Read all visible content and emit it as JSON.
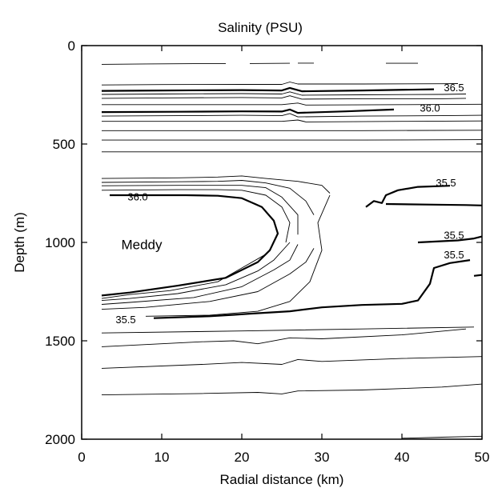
{
  "chart_data": {
    "type": "line",
    "title": "Salinity (PSU)",
    "xlabel": "Radial distance (km)",
    "ylabel": "Depth (m)",
    "xlim": [
      0,
      50
    ],
    "ylim": [
      2000,
      0
    ],
    "x_ticks": [
      0,
      10,
      20,
      30,
      40,
      50
    ],
    "y_ticks": [
      0,
      500,
      1000,
      1500,
      2000
    ],
    "grid": false,
    "annotations": [
      {
        "text": "Meddy",
        "x": 7.5,
        "y": 1010
      }
    ],
    "contour_labels": [
      {
        "text": "36.5",
        "x": 46.5,
        "y": 215
      },
      {
        "text": "36.0",
        "x": 43.5,
        "y": 320
      },
      {
        "text": "36.0",
        "x": 7,
        "y": 770
      },
      {
        "text": "35.5",
        "x": 45.5,
        "y": 700
      },
      {
        "text": "35.5",
        "x": 46.5,
        "y": 965
      },
      {
        "text": "35.5",
        "x": 46.5,
        "y": 1065
      },
      {
        "text": "35.5",
        "x": 5.5,
        "y": 1395
      }
    ],
    "series": [
      {
        "style": "thin",
        "points": [
          [
            2.5,
            95
          ],
          [
            8,
            93
          ],
          [
            14,
            92
          ],
          [
            18,
            92
          ]
        ]
      },
      {
        "style": "thin",
        "points": [
          [
            21,
            91
          ],
          [
            26,
            90
          ]
        ]
      },
      {
        "style": "thin",
        "points": [
          [
            27,
            89
          ],
          [
            29,
            89
          ]
        ]
      },
      {
        "style": "thin",
        "points": [
          [
            38,
            90
          ],
          [
            42,
            90
          ]
        ]
      },
      {
        "style": "thin",
        "points": [
          [
            2.5,
            200
          ],
          [
            10,
            198
          ],
          [
            20,
            197
          ],
          [
            25,
            197
          ],
          [
            26,
            185
          ],
          [
            27,
            195
          ],
          [
            35,
            195
          ],
          [
            45,
            194
          ],
          [
            47,
            193
          ]
        ]
      },
      {
        "style": "thick",
        "points": [
          [
            2.5,
            230
          ],
          [
            10,
            228
          ],
          [
            20,
            226
          ],
          [
            25,
            228
          ],
          [
            26,
            215
          ],
          [
            27.5,
            232
          ],
          [
            35,
            228
          ],
          [
            44,
            222
          ]
        ]
      },
      {
        "style": "thin",
        "points": [
          [
            2.5,
            248
          ],
          [
            10,
            246
          ],
          [
            20,
            244
          ],
          [
            25,
            246
          ],
          [
            26,
            235
          ],
          [
            27.5,
            252
          ],
          [
            35,
            250
          ],
          [
            45,
            248
          ],
          [
            48,
            246
          ]
        ]
      },
      {
        "style": "thin",
        "points": [
          [
            2.5,
            268
          ],
          [
            10,
            266
          ],
          [
            20,
            264
          ],
          [
            25,
            266
          ],
          [
            26,
            255
          ],
          [
            27.5,
            272
          ],
          [
            35,
            270
          ],
          [
            45,
            270
          ],
          [
            48,
            268
          ]
        ]
      },
      {
        "style": "thin",
        "points": [
          [
            2.5,
            300
          ],
          [
            15,
            300
          ],
          [
            25,
            300
          ],
          [
            27,
            292
          ],
          [
            28,
            302
          ],
          [
            40,
            300
          ],
          [
            50,
            298
          ]
        ]
      },
      {
        "style": "thick",
        "points": [
          [
            2.5,
            338
          ],
          [
            12,
            336
          ],
          [
            20,
            334
          ],
          [
            25,
            335
          ],
          [
            26,
            325
          ],
          [
            27,
            342
          ],
          [
            33,
            334
          ],
          [
            39,
            325
          ]
        ]
      },
      {
        "style": "thin",
        "points": [
          [
            2.5,
            358
          ],
          [
            12,
            356
          ],
          [
            20,
            354
          ],
          [
            25,
            356
          ],
          [
            26,
            345
          ],
          [
            27,
            362
          ],
          [
            35,
            358
          ],
          [
            45,
            356
          ],
          [
            50,
            354
          ]
        ]
      },
      {
        "style": "thin",
        "points": [
          [
            2.5,
            385
          ],
          [
            15,
            385
          ],
          [
            25,
            385
          ],
          [
            27,
            378
          ],
          [
            28,
            388
          ],
          [
            40,
            385
          ],
          [
            50,
            383
          ]
        ]
      },
      {
        "style": "thin",
        "points": [
          [
            2.5,
            432
          ],
          [
            20,
            432
          ],
          [
            35,
            432
          ],
          [
            50,
            430
          ]
        ]
      },
      {
        "style": "thin",
        "points": [
          [
            2.5,
            480
          ],
          [
            20,
            480
          ],
          [
            35,
            480
          ],
          [
            50,
            478
          ]
        ]
      },
      {
        "style": "thin",
        "points": [
          [
            2.5,
            540
          ],
          [
            20,
            540
          ],
          [
            35,
            540
          ],
          [
            50,
            540
          ]
        ]
      },
      {
        "style": "thin",
        "points": [
          [
            2.5,
            675
          ],
          [
            12,
            672
          ],
          [
            17,
            668
          ],
          [
            20,
            662
          ],
          [
            23,
            675
          ],
          [
            27,
            690
          ],
          [
            30,
            710
          ],
          [
            31,
            750
          ]
        ]
      },
      {
        "style": "thin",
        "points": [
          [
            2.5,
            695
          ],
          [
            12,
            692
          ],
          [
            17,
            690
          ],
          [
            20,
            685
          ],
          [
            23,
            698
          ],
          [
            26,
            725
          ],
          [
            28,
            790
          ],
          [
            29,
            860
          ]
        ]
      },
      {
        "style": "thin",
        "points": [
          [
            2.5,
            712
          ],
          [
            12,
            710
          ],
          [
            17,
            710
          ],
          [
            20,
            710
          ],
          [
            23,
            722
          ],
          [
            25,
            770
          ],
          [
            27,
            860
          ],
          [
            27,
            960
          ]
        ]
      },
      {
        "style": "thin",
        "points": [
          [
            2.5,
            735
          ],
          [
            12,
            732
          ],
          [
            17,
            732
          ],
          [
            20,
            735
          ],
          [
            23,
            760
          ],
          [
            25,
            820
          ],
          [
            26,
            900
          ],
          [
            25.5,
            1000
          ]
        ]
      },
      {
        "style": "thick",
        "points": [
          [
            3.5,
            760
          ],
          [
            8,
            760
          ],
          [
            13,
            760
          ],
          [
            17,
            763
          ],
          [
            20,
            775
          ],
          [
            22.5,
            820
          ],
          [
            24,
            890
          ],
          [
            24.5,
            955
          ],
          [
            23.5,
            1040
          ],
          [
            22,
            1100
          ],
          [
            18,
            1180
          ],
          [
            12,
            1220
          ],
          [
            6,
            1255
          ],
          [
            2.5,
            1270
          ]
        ]
      },
      {
        "style": "thin",
        "points": [
          [
            23,
            1060
          ],
          [
            20,
            1130
          ],
          [
            17,
            1200
          ],
          [
            11,
            1245
          ],
          [
            6,
            1265
          ],
          [
            2.5,
            1285
          ]
        ]
      },
      {
        "style": "thin",
        "points": [
          [
            26,
            1000
          ],
          [
            24,
            1090
          ],
          [
            22,
            1145
          ],
          [
            18,
            1215
          ],
          [
            12,
            1260
          ],
          [
            6,
            1285
          ],
          [
            2.5,
            1295
          ]
        ]
      },
      {
        "style": "thin",
        "points": [
          [
            27,
            1010
          ],
          [
            26,
            1090
          ],
          [
            24,
            1140
          ],
          [
            20,
            1225
          ],
          [
            14,
            1280
          ],
          [
            6,
            1305
          ],
          [
            2.5,
            1315
          ]
        ]
      },
      {
        "style": "thin",
        "points": [
          [
            29,
            1030
          ],
          [
            28,
            1100
          ],
          [
            26,
            1160
          ],
          [
            22,
            1250
          ],
          [
            16,
            1300
          ],
          [
            8,
            1330
          ],
          [
            2.5,
            1340
          ]
        ]
      },
      {
        "style": "thin",
        "points": [
          [
            31,
            760
          ],
          [
            29.5,
            900
          ],
          [
            30,
            1040
          ],
          [
            28.5,
            1200
          ],
          [
            26,
            1300
          ],
          [
            22,
            1350
          ],
          [
            16,
            1370
          ],
          [
            8,
            1375
          ]
        ]
      },
      {
        "style": "thick",
        "points": [
          [
            9,
            1385
          ],
          [
            16,
            1375
          ],
          [
            19,
            1368
          ],
          [
            21,
            1362
          ],
          [
            26,
            1350
          ],
          [
            30,
            1330
          ],
          [
            35,
            1318
          ],
          [
            40,
            1312
          ],
          [
            42,
            1295
          ],
          [
            43.5,
            1210
          ],
          [
            44,
            1130
          ],
          [
            46,
            1105
          ],
          [
            48.5,
            1090
          ]
        ]
      },
      {
        "style": "thick",
        "points": [
          [
            35.5,
            820
          ],
          [
            36.5,
            790
          ],
          [
            37.5,
            800
          ],
          [
            38,
            760
          ],
          [
            39.5,
            735
          ],
          [
            42,
            718
          ],
          [
            46,
            712
          ]
        ]
      },
      {
        "style": "thick",
        "points": [
          [
            38,
            805
          ],
          [
            44,
            808
          ],
          [
            48,
            810
          ],
          [
            50,
            812
          ]
        ]
      },
      {
        "style": "thick",
        "points": [
          [
            42,
            1000
          ],
          [
            47,
            990
          ],
          [
            49,
            980
          ],
          [
            50,
            970
          ]
        ]
      },
      {
        "style": "thick",
        "points": [
          [
            49,
            1170
          ],
          [
            50,
            1165
          ]
        ]
      },
      {
        "style": "thin",
        "points": [
          [
            2.5,
            1460
          ],
          [
            20,
            1450
          ],
          [
            35,
            1440
          ],
          [
            49,
            1430
          ]
        ]
      },
      {
        "style": "thin",
        "points": [
          [
            2.5,
            1530
          ],
          [
            15,
            1505
          ],
          [
            19,
            1500
          ],
          [
            22,
            1515
          ],
          [
            26,
            1485
          ],
          [
            30,
            1490
          ],
          [
            40,
            1470
          ],
          [
            48,
            1440
          ]
        ]
      },
      {
        "style": "thin",
        "points": [
          [
            2.5,
            1640
          ],
          [
            15,
            1620
          ],
          [
            20,
            1610
          ],
          [
            25,
            1620
          ],
          [
            27,
            1595
          ],
          [
            30,
            1605
          ],
          [
            40,
            1590
          ],
          [
            50,
            1580
          ]
        ]
      },
      {
        "style": "thin",
        "points": [
          [
            2.5,
            1775
          ],
          [
            15,
            1768
          ],
          [
            22,
            1762
          ],
          [
            25,
            1770
          ],
          [
            27,
            1755
          ],
          [
            35,
            1750
          ],
          [
            45,
            1735
          ],
          [
            50,
            1720
          ]
        ]
      },
      {
        "style": "thin",
        "points": [
          [
            40,
            1995
          ],
          [
            45,
            1990
          ],
          [
            50,
            1985
          ]
        ]
      }
    ]
  }
}
